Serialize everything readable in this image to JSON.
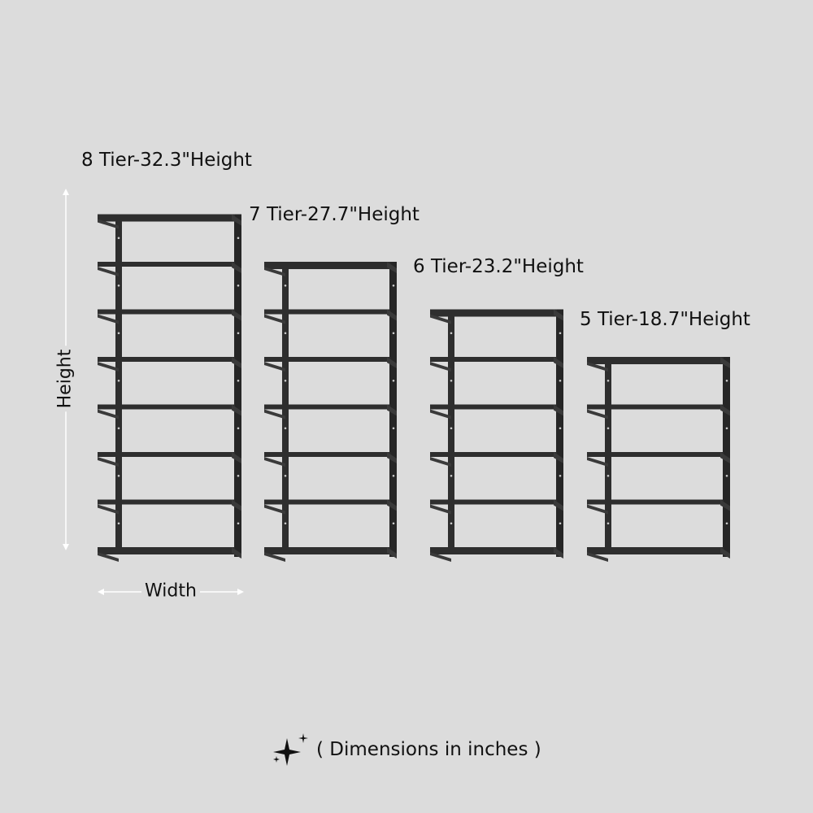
{
  "units": [
    {
      "tiers": 8,
      "label": "8 Tier-32.3\"Height"
    },
    {
      "tiers": 7,
      "label": "7 Tier-27.7\"Height"
    },
    {
      "tiers": 6,
      "label": "6 Tier-23.2\"Height"
    },
    {
      "tiers": 5,
      "label": "5 Tier-18.7\"Height"
    }
  ],
  "dimension_markers": {
    "height": "Height",
    "width": "Width"
  },
  "caption": {
    "icon": "sparkle-icon",
    "text": "( Dimensions in inches )"
  },
  "colors": {
    "background": "#dcdcdc",
    "shelf": "#2e2e2e",
    "dimension_line": "#ffffff"
  }
}
